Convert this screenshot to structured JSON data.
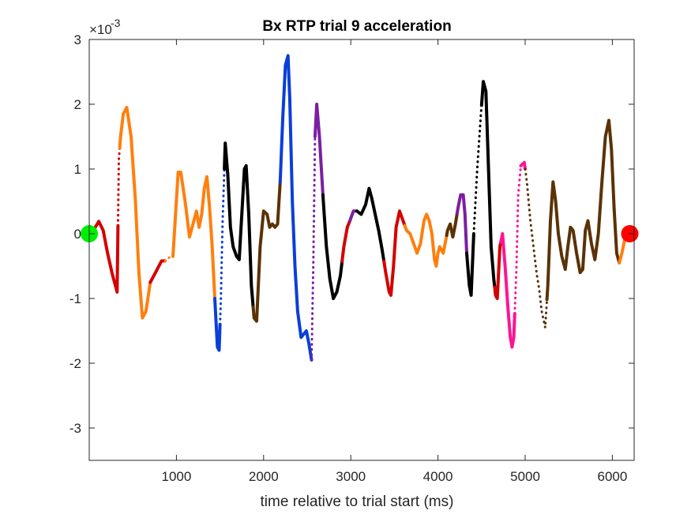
{
  "chart_data": {
    "type": "scatter",
    "title": "Bx  RTP trial 9 acceleration",
    "xlabel": "time relative to trial start (ms)",
    "ylabel": "",
    "y_exponent_label": "×10",
    "y_exponent_power": "-3",
    "xlim": [
      0,
      6250
    ],
    "ylim": [
      -3.5,
      3
    ],
    "xticks": [
      1000,
      2000,
      3000,
      4000,
      5000,
      6000
    ],
    "yticks": [
      3,
      2,
      1,
      0,
      -1,
      -2,
      -3
    ],
    "grid": false,
    "legend": "none",
    "trace": [
      [
        0,
        0.0
      ],
      [
        60,
        0.08
      ],
      [
        110,
        0.19
      ],
      [
        160,
        0.05
      ],
      [
        210,
        -0.3
      ],
      [
        260,
        -0.6
      ],
      [
        300,
        -0.8
      ],
      [
        320,
        -0.9
      ],
      [
        340,
        1.15
      ],
      [
        360,
        1.5
      ],
      [
        390,
        1.85
      ],
      [
        430,
        1.95
      ],
      [
        480,
        1.5
      ],
      [
        530,
        0.5
      ],
      [
        570,
        -0.6
      ],
      [
        610,
        -1.3
      ],
      [
        650,
        -1.2
      ],
      [
        700,
        -0.75
      ],
      [
        760,
        -0.6
      ],
      [
        830,
        -0.42
      ],
      [
        880,
        -0.42
      ],
      [
        930,
        -0.35
      ],
      [
        960,
        -0.35
      ],
      [
        990,
        0.3
      ],
      [
        1020,
        0.95
      ],
      [
        1050,
        0.95
      ],
      [
        1100,
        0.5
      ],
      [
        1150,
        -0.05
      ],
      [
        1200,
        0.2
      ],
      [
        1230,
        0.35
      ],
      [
        1260,
        0.1
      ],
      [
        1290,
        0.3
      ],
      [
        1320,
        0.7
      ],
      [
        1350,
        0.88
      ],
      [
        1380,
        0.4
      ],
      [
        1410,
        -0.2
      ],
      [
        1440,
        -1.0
      ],
      [
        1470,
        -1.75
      ],
      [
        1490,
        -1.8
      ],
      [
        1510,
        -1.0
      ],
      [
        1530,
        0.2
      ],
      [
        1560,
        1.4
      ],
      [
        1590,
        0.9
      ],
      [
        1620,
        0.1
      ],
      [
        1650,
        -0.2
      ],
      [
        1690,
        -0.35
      ],
      [
        1720,
        -0.4
      ],
      [
        1750,
        0.3
      ],
      [
        1780,
        1.0
      ],
      [
        1800,
        1.05
      ],
      [
        1830,
        0.3
      ],
      [
        1860,
        -0.8
      ],
      [
        1890,
        -1.3
      ],
      [
        1920,
        -1.35
      ],
      [
        1960,
        -0.2
      ],
      [
        2000,
        0.35
      ],
      [
        2040,
        0.3
      ],
      [
        2070,
        0.1
      ],
      [
        2100,
        0.15
      ],
      [
        2130,
        0.1
      ],
      [
        2160,
        0.15
      ],
      [
        2190,
        0.8
      ],
      [
        2220,
        1.8
      ],
      [
        2250,
        2.6
      ],
      [
        2280,
        2.75
      ],
      [
        2300,
        2.1
      ],
      [
        2330,
        0.5
      ],
      [
        2360,
        -0.5
      ],
      [
        2390,
        -1.2
      ],
      [
        2430,
        -1.6
      ],
      [
        2460,
        -1.55
      ],
      [
        2490,
        -1.5
      ],
      [
        2520,
        -1.7
      ],
      [
        2550,
        -1.95
      ],
      [
        2570,
        -0.5
      ],
      [
        2590,
        1.5
      ],
      [
        2610,
        2.0
      ],
      [
        2640,
        1.5
      ],
      [
        2680,
        0.6
      ],
      [
        2720,
        -0.2
      ],
      [
        2760,
        -0.7
      ],
      [
        2800,
        -1.0
      ],
      [
        2840,
        -0.9
      ],
      [
        2880,
        -0.65
      ],
      [
        2920,
        -0.2
      ],
      [
        2960,
        0.1
      ],
      [
        2990,
        0.2
      ],
      [
        3030,
        0.35
      ],
      [
        3070,
        0.35
      ],
      [
        3120,
        0.3
      ],
      [
        3170,
        0.45
      ],
      [
        3210,
        0.7
      ],
      [
        3240,
        0.55
      ],
      [
        3280,
        0.3
      ],
      [
        3320,
        0.05
      ],
      [
        3360,
        -0.25
      ],
      [
        3400,
        -0.6
      ],
      [
        3440,
        -0.9
      ],
      [
        3460,
        -0.95
      ],
      [
        3490,
        -0.5
      ],
      [
        3520,
        0.1
      ],
      [
        3560,
        0.35
      ],
      [
        3600,
        0.2
      ],
      [
        3640,
        0.05
      ],
      [
        3680,
        0.0
      ],
      [
        3720,
        -0.15
      ],
      [
        3760,
        -0.3
      ],
      [
        3800,
        -0.15
      ],
      [
        3840,
        0.2
      ],
      [
        3870,
        0.3
      ],
      [
        3900,
        0.2
      ],
      [
        3930,
        0.0
      ],
      [
        3960,
        -0.4
      ],
      [
        3980,
        -0.5
      ],
      [
        4000,
        -0.3
      ],
      [
        4020,
        -0.2
      ],
      [
        4060,
        -0.3
      ],
      [
        4090,
        -0.1
      ],
      [
        4110,
        0.05
      ],
      [
        4140,
        0.15
      ],
      [
        4170,
        -0.05
      ],
      [
        4200,
        0.15
      ],
      [
        4230,
        0.4
      ],
      [
        4260,
        0.6
      ],
      [
        4290,
        0.6
      ],
      [
        4310,
        0.3
      ],
      [
        4330,
        -0.3
      ],
      [
        4360,
        -0.8
      ],
      [
        4380,
        -0.95
      ],
      [
        4410,
        0.0
      ],
      [
        4450,
        1.0
      ],
      [
        4490,
        1.8
      ],
      [
        4520,
        2.35
      ],
      [
        4550,
        2.2
      ],
      [
        4580,
        1.0
      ],
      [
        4610,
        -0.2
      ],
      [
        4640,
        -0.7
      ],
      [
        4660,
        -0.95
      ],
      [
        4680,
        -1.0
      ],
      [
        4710,
        -0.2
      ],
      [
        4740,
        0.0
      ],
      [
        4770,
        -0.5
      ],
      [
        4800,
        -1.1
      ],
      [
        4830,
        -1.6
      ],
      [
        4850,
        -1.75
      ],
      [
        4870,
        -1.6
      ],
      [
        4900,
        -0.5
      ],
      [
        4920,
        0.6
      ],
      [
        4950,
        1.05
      ],
      [
        4990,
        1.1
      ],
      [
        5020,
        0.8
      ],
      [
        5060,
        0.2
      ],
      [
        5100,
        -0.25
      ],
      [
        5130,
        -0.6
      ],
      [
        5160,
        -0.85
      ],
      [
        5190,
        -1.2
      ],
      [
        5230,
        -1.45
      ],
      [
        5260,
        -0.8
      ],
      [
        5290,
        0.2
      ],
      [
        5320,
        0.8
      ],
      [
        5350,
        0.5
      ],
      [
        5380,
        0.0
      ],
      [
        5420,
        -0.35
      ],
      [
        5460,
        -0.55
      ],
      [
        5490,
        -0.2
      ],
      [
        5520,
        0.1
      ],
      [
        5550,
        0.05
      ],
      [
        5590,
        -0.3
      ],
      [
        5630,
        -0.6
      ],
      [
        5660,
        -0.55
      ],
      [
        5690,
        0.05
      ],
      [
        5720,
        0.2
      ],
      [
        5760,
        -0.15
      ],
      [
        5800,
        -0.4
      ],
      [
        5840,
        0.0
      ],
      [
        5880,
        0.8
      ],
      [
        5920,
        1.5
      ],
      [
        5960,
        1.75
      ],
      [
        5990,
        1.3
      ],
      [
        6020,
        0.4
      ],
      [
        6050,
        -0.3
      ],
      [
        6080,
        -0.45
      ],
      [
        6110,
        -0.3
      ],
      [
        6140,
        -0.1
      ],
      [
        6200,
        0.0
      ]
    ],
    "segment_colors": [
      {
        "x0": 0,
        "x1": 330,
        "color": "#d40000",
        "style": "solid"
      },
      {
        "x0": 330,
        "x1": 350,
        "color": "#d40000",
        "style": "dotted"
      },
      {
        "x0": 350,
        "x1": 700,
        "color": "#ff7f0e",
        "style": "solid"
      },
      {
        "x0": 700,
        "x1": 870,
        "color": "#d40000",
        "style": "solid"
      },
      {
        "x0": 870,
        "x1": 960,
        "color": "#ff7f0e",
        "style": "dotted"
      },
      {
        "x0": 960,
        "x1": 1440,
        "color": "#ff7f0e",
        "style": "solid"
      },
      {
        "x0": 1440,
        "x1": 1500,
        "color": "#0a3fd8",
        "style": "solid"
      },
      {
        "x0": 1500,
        "x1": 1550,
        "color": "#0a3fd8",
        "style": "dotted"
      },
      {
        "x0": 1550,
        "x1": 1880,
        "color": "#000000",
        "style": "solid"
      },
      {
        "x0": 1880,
        "x1": 2190,
        "color": "#5a3204",
        "style": "solid"
      },
      {
        "x0": 2190,
        "x1": 2550,
        "color": "#0a3fd8",
        "style": "solid"
      },
      {
        "x0": 2550,
        "x1": 2590,
        "color": "#7b1fa2",
        "style": "dotted"
      },
      {
        "x0": 2590,
        "x1": 2680,
        "color": "#7b1fa2",
        "style": "solid"
      },
      {
        "x0": 2680,
        "x1": 2900,
        "color": "#000000",
        "style": "solid"
      },
      {
        "x0": 2900,
        "x1": 2990,
        "color": "#d40000",
        "style": "solid"
      },
      {
        "x0": 2990,
        "x1": 3070,
        "color": "#7b1fa2",
        "style": "solid"
      },
      {
        "x0": 3070,
        "x1": 3380,
        "color": "#000000",
        "style": "solid"
      },
      {
        "x0": 3380,
        "x1": 3620,
        "color": "#d40000",
        "style": "solid"
      },
      {
        "x0": 3620,
        "x1": 4100,
        "color": "#ff7f0e",
        "style": "solid"
      },
      {
        "x0": 4100,
        "x1": 4220,
        "color": "#5a3204",
        "style": "solid"
      },
      {
        "x0": 4220,
        "x1": 4330,
        "color": "#7b1fa2",
        "style": "solid"
      },
      {
        "x0": 4330,
        "x1": 4410,
        "color": "#000000",
        "style": "solid"
      },
      {
        "x0": 4410,
        "x1": 4500,
        "color": "#000000",
        "style": "dotted"
      },
      {
        "x0": 4500,
        "x1": 4650,
        "color": "#000000",
        "style": "solid"
      },
      {
        "x0": 4650,
        "x1": 4720,
        "color": "#d40000",
        "style": "solid"
      },
      {
        "x0": 4720,
        "x1": 4880,
        "color": "#ff1493",
        "style": "solid"
      },
      {
        "x0": 4880,
        "x1": 4950,
        "color": "#ff1493",
        "style": "dotted"
      },
      {
        "x0": 4950,
        "x1": 5000,
        "color": "#ff1493",
        "style": "solid"
      },
      {
        "x0": 5000,
        "x1": 5250,
        "color": "#5a3204",
        "style": "dotted"
      },
      {
        "x0": 5250,
        "x1": 6080,
        "color": "#5a3204",
        "style": "solid"
      },
      {
        "x0": 6080,
        "x1": 6200,
        "color": "#ff7f0e",
        "style": "solid"
      }
    ],
    "start_marker": {
      "x": 0,
      "y": 0,
      "color": "#00ee00"
    },
    "end_marker": {
      "x": 6200,
      "y": 0,
      "color": "#ff0000"
    }
  }
}
